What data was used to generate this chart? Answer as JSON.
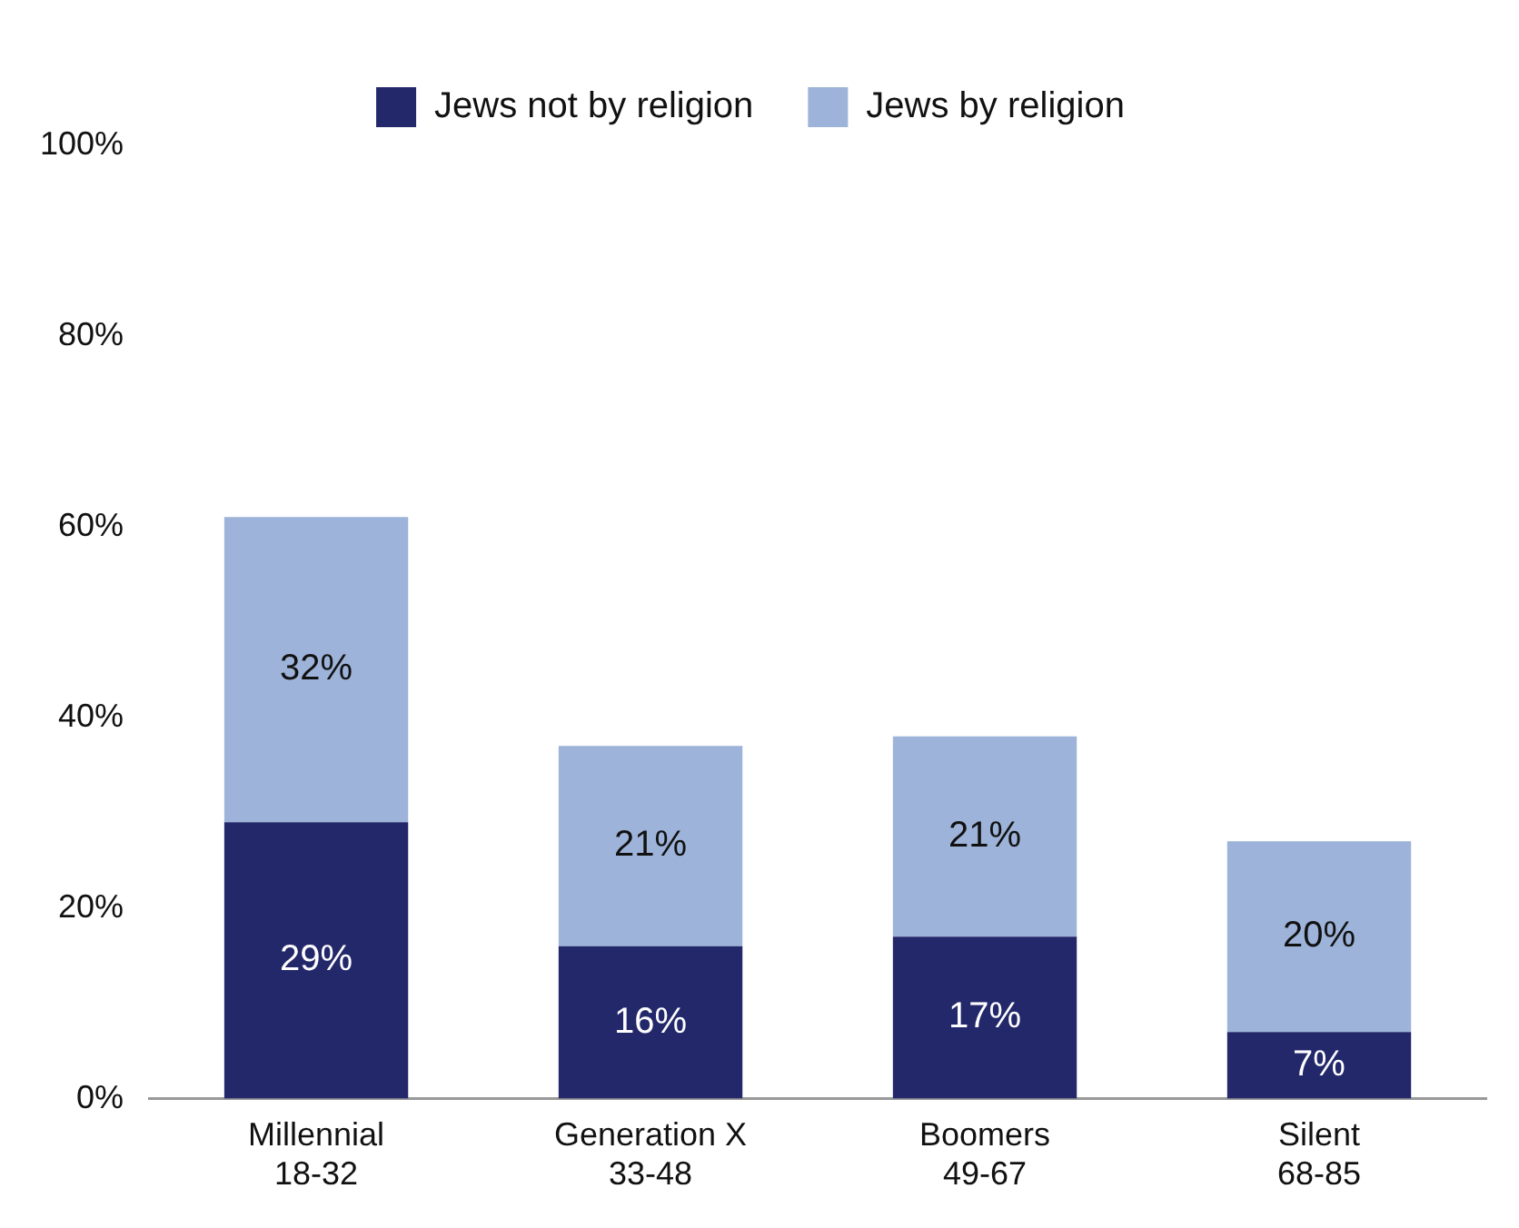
{
  "chart_data": {
    "type": "bar",
    "stacked": true,
    "categories": [
      "Millennial\n18-32",
      "Generation X\n33-48",
      "Boomers\n49-67",
      "Silent\n68-85"
    ],
    "series": [
      {
        "name": "Jews not by religion",
        "color": "#23286b",
        "values": [
          29,
          16,
          17,
          7
        ],
        "value_labels": [
          "29%",
          "16%",
          "17%",
          "7%"
        ]
      },
      {
        "name": "Jews by religion",
        "color": "#9db3d9",
        "values": [
          32,
          21,
          21,
          20
        ],
        "value_labels": [
          "32%",
          "21%",
          "21%",
          "20%"
        ]
      }
    ],
    "ylim": [
      0,
      100
    ],
    "yticks": [
      {
        "value": 0,
        "label": "0%"
      },
      {
        "value": 20,
        "label": "20%"
      },
      {
        "value": 40,
        "label": "40%"
      },
      {
        "value": 60,
        "label": "60%"
      },
      {
        "value": 80,
        "label": "80%"
      },
      {
        "value": 100,
        "label": "100%"
      }
    ],
    "grid": false,
    "legend": "top"
  }
}
